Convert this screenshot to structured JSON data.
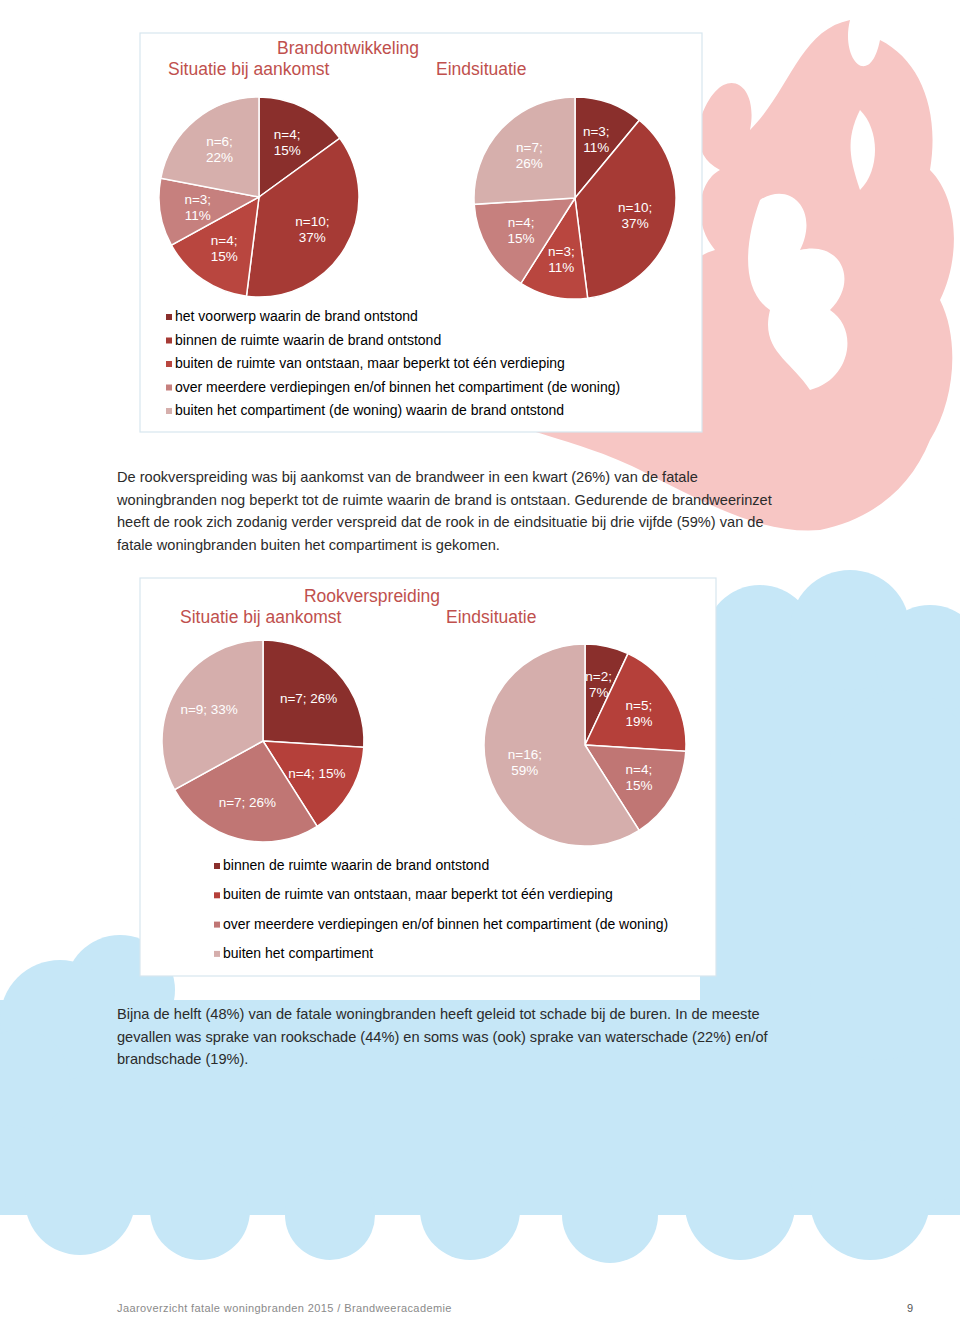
{
  "chart_data": [
    {
      "type": "pie",
      "title": "Brandontwikkeling",
      "legend": "bottom",
      "data_labels": true,
      "categories": [
        "het voorwerp waarin de brand ontstond",
        "binnen de ruimte waarin de brand ontstond",
        "buiten de ruimte van ontstaan, maar beperkt tot één verdieping",
        "over meerdere verdiepingen en/of binnen het compartiment (de woning)",
        "buiten het compartiment (de woning) waarin de brand ontstond"
      ],
      "colors": [
        "#8a2f2c",
        "#a63a35",
        "#b9463f",
        "#c6807e",
        "#d6afac"
      ],
      "series": [
        {
          "name": "Situatie bij aankomst",
          "values": [
            15,
            37,
            15,
            11,
            22
          ],
          "value_labels": [
            "n=4; 15%",
            "n=10; 37%",
            "n=4; 15%",
            "n=3; 11%",
            "n=6; 22%"
          ]
        },
        {
          "name": "Eindsituatie",
          "values": [
            11,
            37,
            11,
            15,
            26
          ],
          "value_labels": [
            "n=3; 11%",
            "n=10; 37%",
            "n=3; 11%",
            "n=4; 15%",
            "n=7; 26%"
          ]
        }
      ]
    },
    {
      "type": "pie",
      "title": "Rookverspreiding",
      "legend": "bottom",
      "data_labels": true,
      "categories": [
        "binnen de ruimte waarin de brand ontstond",
        "buiten de ruimte van ontstaan, maar beperkt tot één verdieping",
        "over meerdere verdiepingen en/of binnen het compartiment (de woning)",
        "buiten het compartiment"
      ],
      "colors": [
        "#8a2f2c",
        "#b5403a",
        "#c07674",
        "#d5aeac"
      ],
      "series": [
        {
          "name": "Situatie bij aankomst",
          "values": [
            26,
            15,
            26,
            33
          ],
          "value_labels": [
            "n=7; 26%",
            "n=4; 15%",
            "n=7; 26%",
            "n=9; 33%"
          ]
        },
        {
          "name": "Eindsituatie",
          "values": [
            7,
            19,
            15,
            59
          ],
          "value_labels": [
            "n=2; 7%",
            "n=5; 19%",
            "n=4; 15%",
            "n=16; 59%"
          ]
        }
      ]
    }
  ],
  "paragraphs": [
    [
      "De rookverspreiding was bij aankomst van de brandweer in een kwart (26%) van de fatale",
      "woningbranden nog beperkt tot de ruimte waarin de brand is ontstaan. Gedurende de brandweerinzet",
      "heeft de rook zich zodanig verder verspreid dat de rook in de eindsituatie bij drie vijfde (59%) van de",
      "fatale woningbranden buiten het compartiment is gekomen."
    ],
    [
      "Bijna de helft (48%) van de fatale woningbranden heeft geleid tot schade bij de buren. In de meeste",
      "gevallen was sprake van rookschade (44%) en soms was (ook) sprake van waterschade (22%) en/of",
      "brandschade (19%)."
    ]
  ],
  "footer": {
    "text": "Jaaroverzicht fatale woningbranden 2015 / Brandweeracademie",
    "page": 9
  }
}
